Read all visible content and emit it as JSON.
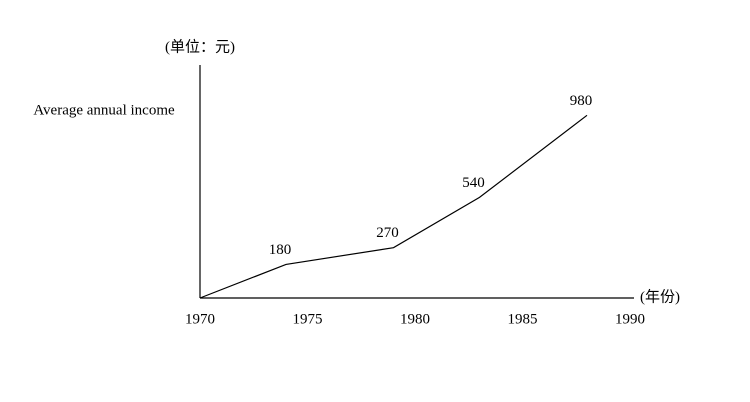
{
  "chart_data": {
    "type": "line",
    "unit_label": "(单位：元)",
    "y_label": "Average annual income",
    "x_label": "(年份)",
    "x": [
      1970,
      1974,
      1979,
      1983,
      1988
    ],
    "values": [
      0,
      180,
      270,
      540,
      980
    ],
    "value_labels": [
      null,
      "180",
      "270",
      "540",
      "980"
    ],
    "color": "#000000",
    "xlim": [
      1970,
      1990
    ],
    "xticks": [
      1970,
      1975,
      1980,
      1985,
      1990
    ],
    "ylim": [
      0,
      1250
    ]
  }
}
